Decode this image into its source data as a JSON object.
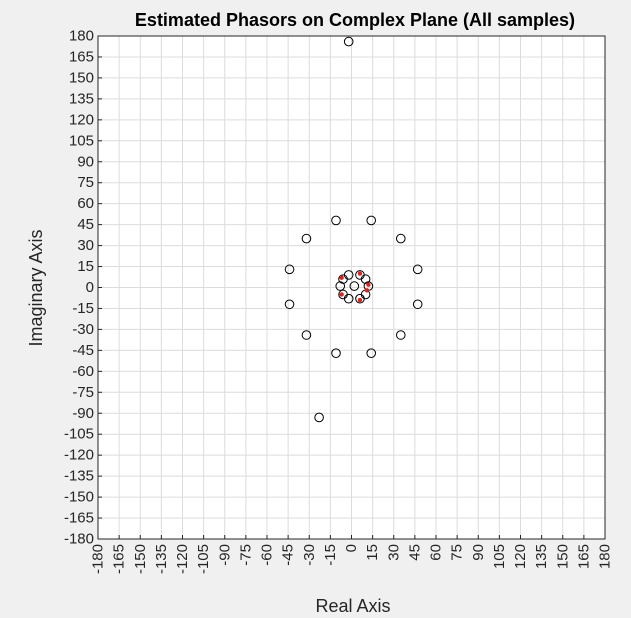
{
  "chart_data": {
    "type": "scatter",
    "title": "Estimated Phasors on Complex Plane (All samples)",
    "xlabel": "Real Axis",
    "ylabel": "Imaginary Axis",
    "xlim": [
      -180,
      180
    ],
    "ylim": [
      -180,
      180
    ],
    "xticks": [
      "-180",
      "-165",
      "-150",
      "-135",
      "-120",
      "-105",
      "-90",
      "-75",
      "-60",
      "-45",
      "-30",
      "-15",
      "0",
      "15",
      "30",
      "45",
      "60",
      "75",
      "90",
      "105",
      "120",
      "135",
      "150",
      "165",
      "180"
    ],
    "yticks": [
      "180",
      "165",
      "150",
      "135",
      "120",
      "105",
      "90",
      "75",
      "60",
      "45",
      "30",
      "15",
      "0",
      "-15",
      "-30",
      "-45",
      "-60",
      "-75",
      "-90",
      "-105",
      "-120",
      "-135",
      "-150",
      "-165",
      "-180"
    ],
    "grid": true,
    "series": [
      {
        "marker": "circle",
        "color": "#000000",
        "points": [
          {
            "x": -2,
            "y": 176
          },
          {
            "x": -11,
            "y": 48
          },
          {
            "x": 14,
            "y": 48
          },
          {
            "x": -32,
            "y": 35
          },
          {
            "x": 35,
            "y": 35
          },
          {
            "x": -44,
            "y": 13
          },
          {
            "x": 47,
            "y": 13
          },
          {
            "x": -44,
            "y": -12
          },
          {
            "x": 47,
            "y": -12
          },
          {
            "x": -32,
            "y": -34
          },
          {
            "x": 35,
            "y": -34
          },
          {
            "x": -11,
            "y": -47
          },
          {
            "x": 14,
            "y": -47
          },
          {
            "x": -23,
            "y": -93
          },
          {
            "x": 2,
            "y": 1
          },
          {
            "x": -2,
            "y": 9
          },
          {
            "x": 6,
            "y": 9
          },
          {
            "x": -6,
            "y": 6
          },
          {
            "x": 10,
            "y": 6
          },
          {
            "x": -8,
            "y": 1
          },
          {
            "x": 12,
            "y": 1
          },
          {
            "x": -6,
            "y": -5
          },
          {
            "x": 10,
            "y": -5
          },
          {
            "x": -2,
            "y": -8
          },
          {
            "x": 6,
            "y": -8
          }
        ]
      },
      {
        "marker": "dot",
        "color": "#e0201b",
        "points": [
          {
            "x": 6,
            "y": 10
          },
          {
            "x": -7,
            "y": 7
          },
          {
            "x": 12,
            "y": 2
          },
          {
            "x": -7,
            "y": -5
          },
          {
            "x": 6,
            "y": -9
          },
          {
            "x": 11,
            "y": -2
          }
        ]
      }
    ],
    "colors": {
      "background": "#f0f0f0",
      "axes_bg": "#ffffff",
      "grid": "#dcdcdc",
      "axis": "#262626"
    }
  }
}
